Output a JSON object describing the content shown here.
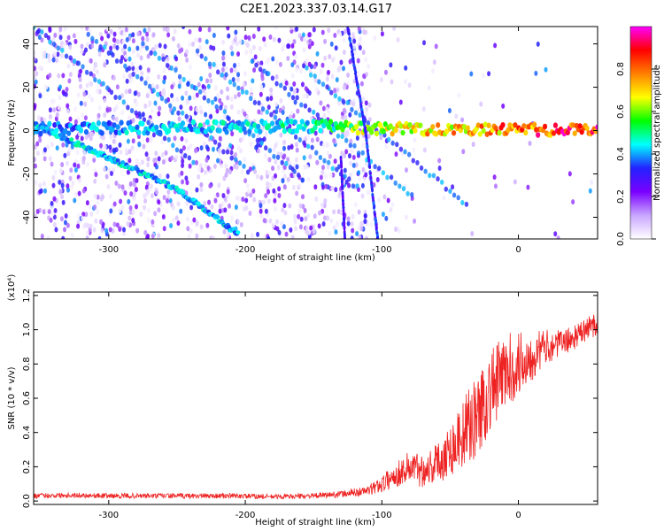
{
  "title": "C2E1.2023.337.03.14.G17",
  "chart_data": [
    {
      "type": "heatmap",
      "xlabel": "Height of straight line (km)",
      "ylabel": "Frequency (Hz)",
      "xlim": [
        -355,
        58
      ],
      "ylim": [
        -50,
        48
      ],
      "x_ticks": [
        -300,
        -200,
        -100,
        0
      ],
      "x_tick_labels": [
        "-300",
        "-200",
        "-100",
        "0"
      ],
      "y_ticks": [
        -40,
        -20,
        0,
        20,
        40
      ],
      "y_tick_labels": [
        "-40",
        "-20",
        "0",
        "20",
        "40"
      ],
      "colorbar": {
        "label": "Normalized spectral amplitude",
        "range": [
          0,
          1
        ],
        "ticks": [
          0.0,
          0.2,
          0.4,
          0.6,
          0.8
        ],
        "tick_labels": [
          "0.0",
          "0.2",
          "0.4",
          "0.6",
          "0.8"
        ],
        "colormap": [
          "#ffffff",
          "#c9a6ff",
          "#7a00ff",
          "#2222ff",
          "#00ffff",
          "#00ff00",
          "#ffff00",
          "#ff8000",
          "#ff0000",
          "#ff00ff"
        ]
      },
      "features": [
        {
          "name": "surface tone",
          "points": [
            [
              -355,
              1
            ],
            [
              -150,
              2
            ],
            [
              -100,
              1
            ],
            [
              58,
              0
            ]
          ],
          "amplitude": [
            0.4,
            0.5,
            0.7,
            0.95
          ]
        },
        {
          "name": "descending streak",
          "points": [
            [
              -355,
              3
            ],
            [
              -250,
              -27
            ],
            [
              -205,
              -48
            ]
          ],
          "amplitude": 0.45
        },
        {
          "name": "steep line",
          "points": [
            [
              -125,
              48
            ],
            [
              -112,
              0
            ],
            [
              -103,
              -50
            ]
          ],
          "amplitude": 0.35
        },
        {
          "name": "steep line 2",
          "points": [
            [
              -130,
              -12
            ],
            [
              -127,
              -50
            ]
          ],
          "amplitude": 0.3
        }
      ],
      "grid": false
    },
    {
      "type": "line",
      "xlabel": "Height of straight line (km)",
      "ylabel": "SNR (10 * v/v)",
      "y_multiplier": "(x10⁴)",
      "xlim": [
        -355,
        58
      ],
      "ylim": [
        -0.02,
        1.22
      ],
      "x_ticks": [
        -300,
        -200,
        -100,
        0
      ],
      "x_tick_labels": [
        "-300",
        "-200",
        "-100",
        "0"
      ],
      "y_ticks": [
        0.0,
        0.2,
        0.4,
        0.6,
        0.8,
        1.0,
        1.2
      ],
      "y_tick_labels": [
        "0.0",
        "0.2",
        "0.4",
        "0.6",
        "0.8",
        "1.0",
        "1.2"
      ],
      "color": "#ee2222",
      "series": [
        {
          "x": [
            -355,
            -330,
            -300,
            -270,
            -240,
            -210,
            -180,
            -150,
            -130,
            -110,
            -100,
            -90,
            -80,
            -70,
            -60,
            -50,
            -40,
            -30,
            -20,
            -10,
            0,
            10,
            20,
            30,
            40,
            50,
            58
          ],
          "values": [
            0.03,
            0.035,
            0.03,
            0.03,
            0.03,
            0.03,
            0.025,
            0.03,
            0.04,
            0.06,
            0.1,
            0.15,
            0.2,
            0.18,
            0.22,
            0.3,
            0.4,
            0.5,
            0.65,
            0.75,
            0.8,
            0.85,
            0.9,
            0.92,
            0.95,
            1.0,
            1.05
          ],
          "noise": [
            0.015,
            0.015,
            0.015,
            0.015,
            0.015,
            0.015,
            0.015,
            0.015,
            0.02,
            0.03,
            0.05,
            0.07,
            0.1,
            0.1,
            0.12,
            0.16,
            0.2,
            0.25,
            0.25,
            0.22,
            0.2,
            0.15,
            0.1,
            0.08,
            0.07,
            0.07,
            0.08
          ]
        }
      ],
      "grid": false
    }
  ]
}
